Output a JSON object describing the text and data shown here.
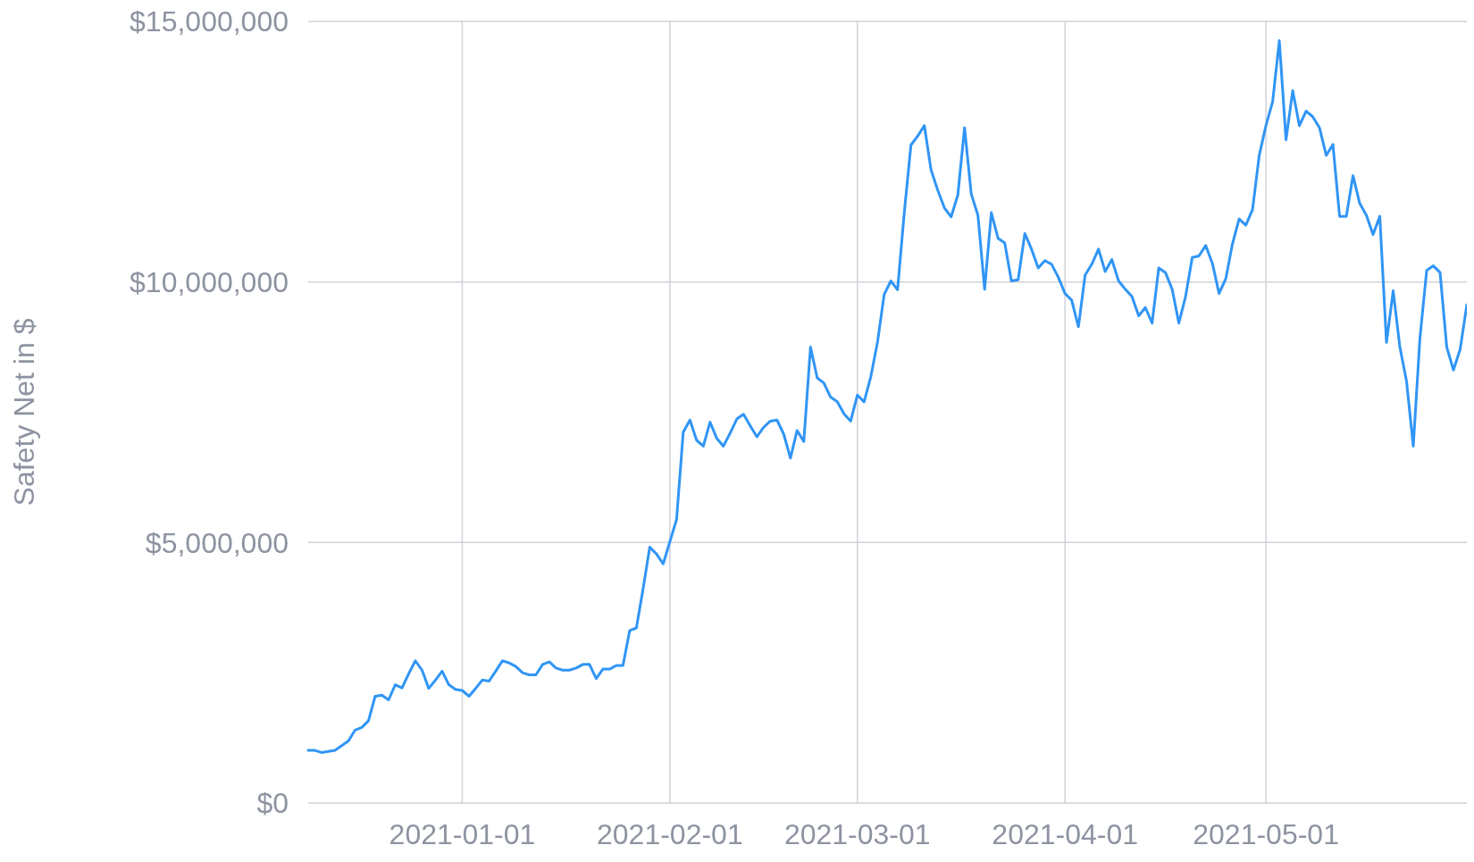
{
  "chart_data": {
    "type": "line",
    "ylabel": "Safety Net in $",
    "grid": true,
    "marker": "none",
    "line_style": "solid",
    "xlim": [
      "2020-12-09",
      "2021-05-31"
    ],
    "xticks": [
      "2021-01-01",
      "2021-02-01",
      "2021-03-01",
      "2021-04-01",
      "2021-05-01"
    ],
    "ylim": [
      0,
      15000000
    ],
    "yticks": [
      {
        "value": 0,
        "label": "$0"
      },
      {
        "value": 5000000,
        "label": "$5,000,000"
      },
      {
        "value": 10000000,
        "label": "$10,000,000"
      },
      {
        "value": 15000000,
        "label": "$15,000,000"
      }
    ],
    "x": [
      "2020-12-09",
      "2020-12-10",
      "2020-12-11",
      "2020-12-13",
      "2020-12-15",
      "2020-12-16",
      "2020-12-17",
      "2020-12-18",
      "2020-12-19",
      "2020-12-20",
      "2020-12-21",
      "2020-12-22",
      "2020-12-23",
      "2020-12-24",
      "2020-12-25",
      "2020-12-26",
      "2020-12-27",
      "2020-12-28",
      "2020-12-29",
      "2020-12-30",
      "2020-12-31",
      "2021-01-01",
      "2021-01-02",
      "2021-01-03",
      "2021-01-04",
      "2021-01-05",
      "2021-01-06",
      "2021-01-07",
      "2021-01-08",
      "2021-01-09",
      "2021-01-10",
      "2021-01-11",
      "2021-01-12",
      "2021-01-13",
      "2021-01-14",
      "2021-01-15",
      "2021-01-16",
      "2021-01-17",
      "2021-01-18",
      "2021-01-19",
      "2021-01-20",
      "2021-01-21",
      "2021-01-22",
      "2021-01-23",
      "2021-01-24",
      "2021-01-25",
      "2021-01-26",
      "2021-01-27",
      "2021-01-28",
      "2021-01-29",
      "2021-01-30",
      "2021-01-31",
      "2021-02-02",
      "2021-02-03",
      "2021-02-04",
      "2021-02-05",
      "2021-02-06",
      "2021-02-07",
      "2021-02-08",
      "2021-02-09",
      "2021-02-10",
      "2021-02-11",
      "2021-02-12",
      "2021-02-13",
      "2021-02-14",
      "2021-02-15",
      "2021-02-16",
      "2021-02-17",
      "2021-02-18",
      "2021-02-19",
      "2021-02-20",
      "2021-02-21",
      "2021-02-22",
      "2021-02-23",
      "2021-02-24",
      "2021-02-25",
      "2021-02-26",
      "2021-02-27",
      "2021-02-28",
      "2021-03-01",
      "2021-03-02",
      "2021-03-03",
      "2021-03-04",
      "2021-03-05",
      "2021-03-06",
      "2021-03-07",
      "2021-03-08",
      "2021-03-09",
      "2021-03-10",
      "2021-03-11",
      "2021-03-12",
      "2021-03-13",
      "2021-03-14",
      "2021-03-15",
      "2021-03-16",
      "2021-03-17",
      "2021-03-18",
      "2021-03-19",
      "2021-03-20",
      "2021-03-21",
      "2021-03-22",
      "2021-03-23",
      "2021-03-24",
      "2021-03-25",
      "2021-03-26",
      "2021-03-27",
      "2021-03-28",
      "2021-03-29",
      "2021-03-30",
      "2021-03-31",
      "2021-04-01",
      "2021-04-02",
      "2021-04-03",
      "2021-04-04",
      "2021-04-05",
      "2021-04-06",
      "2021-04-07",
      "2021-04-08",
      "2021-04-09",
      "2021-04-10",
      "2021-04-11",
      "2021-04-12",
      "2021-04-13",
      "2021-04-14",
      "2021-04-15",
      "2021-04-16",
      "2021-04-17",
      "2021-04-18",
      "2021-04-19",
      "2021-04-20",
      "2021-04-21",
      "2021-04-22",
      "2021-04-23",
      "2021-04-24",
      "2021-04-25",
      "2021-04-26",
      "2021-04-27",
      "2021-04-28",
      "2021-04-29",
      "2021-04-30",
      "2021-05-01",
      "2021-05-02",
      "2021-05-03",
      "2021-05-04",
      "2021-05-05",
      "2021-05-06",
      "2021-05-07",
      "2021-05-08",
      "2021-05-09",
      "2021-05-10",
      "2021-05-11",
      "2021-05-12",
      "2021-05-13",
      "2021-05-14",
      "2021-05-15",
      "2021-05-16",
      "2021-05-17",
      "2021-05-18",
      "2021-05-19",
      "2021-05-20",
      "2021-05-21",
      "2021-05-22",
      "2021-05-23",
      "2021-05-24",
      "2021-05-25",
      "2021-05-26",
      "2021-05-27",
      "2021-05-28",
      "2021-05-29",
      "2021-05-30",
      "2021-05-31"
    ],
    "series": [
      {
        "color": "#3095f5",
        "values": [
          1010000,
          1010000,
          970000,
          1010000,
          1190000,
          1400000,
          1450000,
          1580000,
          2050000,
          2070000,
          1980000,
          2270000,
          2210000,
          2480000,
          2730000,
          2550000,
          2200000,
          2360000,
          2530000,
          2270000,
          2180000,
          2160000,
          2050000,
          2200000,
          2360000,
          2340000,
          2530000,
          2730000,
          2690000,
          2620000,
          2500000,
          2460000,
          2460000,
          2660000,
          2710000,
          2590000,
          2550000,
          2550000,
          2590000,
          2660000,
          2660000,
          2390000,
          2570000,
          2570000,
          2640000,
          2640000,
          3310000,
          3360000,
          4110000,
          4910000,
          4780000,
          4590000,
          5440000,
          7120000,
          7350000,
          6960000,
          6850000,
          7310000,
          7000000,
          6850000,
          7100000,
          7370000,
          7460000,
          7240000,
          7030000,
          7210000,
          7330000,
          7350000,
          7080000,
          6620000,
          7150000,
          6940000,
          8750000,
          8160000,
          8060000,
          7790000,
          7700000,
          7470000,
          7330000,
          7830000,
          7700000,
          8180000,
          8840000,
          9760000,
          10020000,
          9850000,
          11330000,
          12630000,
          12800000,
          13000000,
          12150000,
          11760000,
          11420000,
          11250000,
          11670000,
          12960000,
          11690000,
          11280000,
          9860000,
          11330000,
          10840000,
          10750000,
          10020000,
          10040000,
          10930000,
          10630000,
          10270000,
          10410000,
          10340000,
          10090000,
          9780000,
          9650000,
          9140000,
          10130000,
          10340000,
          10630000,
          10200000,
          10430000,
          10020000,
          9860000,
          9720000,
          9350000,
          9510000,
          9210000,
          10270000,
          10180000,
          9860000,
          9210000,
          9720000,
          10470000,
          10500000,
          10700000,
          10360000,
          9780000,
          10060000,
          10730000,
          11210000,
          11090000,
          11390000,
          12430000,
          13000000,
          13460000,
          14630000,
          12730000,
          13670000,
          13000000,
          13280000,
          13170000,
          12960000,
          12430000,
          12640000,
          11260000,
          11260000,
          12040000,
          11510000,
          11280000,
          10910000,
          11260000,
          8840000,
          9830000,
          8750000,
          8090000,
          6850000,
          8930000,
          10220000,
          10310000,
          10180000,
          8750000,
          8310000,
          8710000,
          9560000
        ]
      }
    ]
  }
}
